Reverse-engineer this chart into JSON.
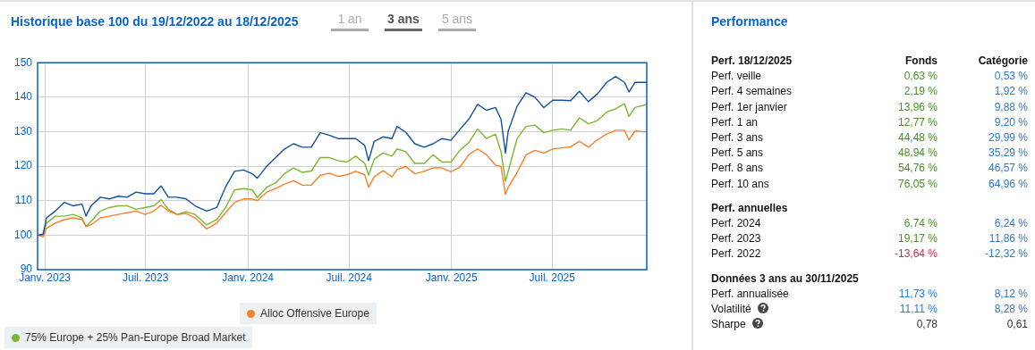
{
  "chart_data": [
    {
      "type": "line",
      "title": "Historique base 100 du 19/12/2022 au 18/12/2025",
      "annotations": [
        "1 an",
        "3 ans",
        "5 ans"
      ],
      "x": [
        "2022-12-19",
        "2022-12-29",
        "2023-01-04",
        "2023-01-20",
        "2023-02-05",
        "2023-02-21",
        "2023-03-09",
        "2023-03-16",
        "2023-03-25",
        "2023-04-11",
        "2023-04-27",
        "2023-05-13",
        "2023-05-29",
        "2023-06-14",
        "2023-06-30",
        "2023-07-16",
        "2023-07-29",
        "2023-08-11",
        "2023-08-27",
        "2023-09-12",
        "2023-09-28",
        "2023-10-19",
        "2023-11-06",
        "2023-11-22",
        "2023-12-08",
        "2023-12-24",
        "2024-01-09",
        "2024-01-18",
        "2024-02-04",
        "2024-02-20",
        "2024-03-07",
        "2024-03-23",
        "2024-04-08",
        "2024-04-24",
        "2024-05-10",
        "2024-05-26",
        "2024-06-11",
        "2024-06-27",
        "2024-07-13",
        "2024-07-29",
        "2024-08-05",
        "2024-08-15",
        "2024-08-31",
        "2024-09-16",
        "2024-09-25",
        "2024-10-11",
        "2024-10-27",
        "2024-11-13",
        "2024-11-29",
        "2024-12-15",
        "2024-12-31",
        "2025-01-16",
        "2025-02-01",
        "2025-02-17",
        "2025-03-05",
        "2025-03-21",
        "2025-03-31",
        "2025-04-08",
        "2025-04-13",
        "2025-04-29",
        "2025-05-15",
        "2025-05-31",
        "2025-06-16",
        "2025-07-02",
        "2025-07-18",
        "2025-08-03",
        "2025-08-19",
        "2025-09-04",
        "2025-09-20",
        "2025-10-07",
        "2025-10-23",
        "2025-11-08",
        "2025-11-16",
        "2025-11-27",
        "2025-12-18"
      ],
      "series": [
        {
          "color": "#12509e",
          "values": [
            100,
            100.3,
            105,
            107,
            109.5,
            108.5,
            109,
            105.5,
            108.5,
            111,
            110.5,
            111.3,
            111,
            112.5,
            112,
            112,
            114.3,
            111,
            111,
            110.5,
            108.5,
            107,
            108,
            114,
            118.5,
            118.9,
            117.8,
            116.5,
            120,
            122.5,
            125,
            126.5,
            125.5,
            125.5,
            129.7,
            129,
            128,
            128,
            128,
            126,
            121.6,
            127.2,
            128.5,
            128,
            131.5,
            129.8,
            126.5,
            125.5,
            126.5,
            128,
            127.5,
            130.6,
            133.6,
            137.9,
            136.2,
            137,
            133.6,
            123.8,
            130.2,
            137.4,
            141.3,
            140,
            137,
            139.1,
            139.1,
            139,
            141.7,
            138.7,
            140.9,
            144.3,
            146,
            144.3,
            141.5,
            144.3,
            144.3
          ]
        },
        {
          "name": "Alloc Offensive Europe",
          "color": "#f5822a",
          "values": [
            100,
            99.5,
            102,
            103.5,
            104.5,
            105,
            104.5,
            102.5,
            103,
            105,
            105.5,
            106,
            106.5,
            107,
            106,
            107,
            108.7,
            107,
            106,
            106.3,
            105,
            101.8,
            103.5,
            106.5,
            109.5,
            110.5,
            110.5,
            110,
            112.5,
            113.5,
            114.8,
            115.8,
            114.5,
            114.5,
            117.3,
            118,
            117,
            117.5,
            118.5,
            117.5,
            113.9,
            116.9,
            118.7,
            116.9,
            119,
            119.9,
            117.8,
            118.5,
            119.5,
            119.5,
            118.4,
            119.7,
            123.3,
            125,
            123.3,
            120.3,
            119.9,
            111.8,
            113.9,
            118.2,
            123.3,
            124.6,
            123.8,
            125,
            125.3,
            125.6,
            127.2,
            125.5,
            127.6,
            129.3,
            130.4,
            130.4,
            127.6,
            130.2,
            129.9
          ]
        },
        {
          "name": "75% Europe + 25% Pan-Europe Broad Market",
          "color": "#7ab730",
          "values": [
            100,
            100,
            103.5,
            105.5,
            105.5,
            106,
            105,
            102.5,
            104,
            107,
            108,
            108.5,
            108.5,
            107.5,
            108,
            108.5,
            110.3,
            107.5,
            106,
            106.8,
            106,
            103,
            104.5,
            108,
            113.1,
            113.5,
            113.1,
            110.9,
            113.9,
            115.2,
            117.8,
            119.5,
            118.2,
            118.6,
            122.5,
            122.5,
            121.6,
            121.2,
            122.9,
            120.8,
            117.4,
            122,
            123.8,
            122.9,
            125,
            124.2,
            120.8,
            120.8,
            123.3,
            121.2,
            121.2,
            124.6,
            126.8,
            130.8,
            128,
            129.3,
            124.2,
            115.6,
            118.6,
            128,
            131.5,
            131.9,
            129.7,
            130.4,
            130.8,
            130.4,
            134,
            132.3,
            133.2,
            135.7,
            136.6,
            138.1,
            134.4,
            137,
            137.9
          ]
        }
      ],
      "xlim": [
        "2022-12-19",
        "2025-12-18"
      ],
      "xticks": [
        {
          "value": "2023-01-01",
          "label": "Janv. 2023"
        },
        {
          "value": "2023-07-01",
          "label": "Juil. 2023"
        },
        {
          "value": "2024-01-01",
          "label": "Janv. 2024"
        },
        {
          "value": "2024-07-01",
          "label": "Juil. 2024"
        },
        {
          "value": "2025-01-01",
          "label": "Janv. 2025"
        },
        {
          "value": "2025-07-01",
          "label": "Juil. 2025"
        }
      ],
      "ylim": [
        90,
        150
      ],
      "yticks": [
        90,
        100,
        110,
        120,
        130,
        140,
        150
      ],
      "grid": true,
      "legend": "bottom",
      "marker": "none"
    },
    {
      "type": "other",
      "title": "Performance",
      "categories": [
        "Perf. 18/12/2025",
        "Perf. veille",
        "Perf. 4 semaines",
        "Perf. 1er janvier",
        "Perf. 1 an",
        "Perf. 3 ans",
        "Perf. 5 ans",
        "Perf. 8 ans",
        "Perf. 10 ans",
        "Perf. annuelles",
        "Perf. 2024",
        "Perf. 2023",
        "Perf. 2022",
        "Données 3 ans au 30/11/2025",
        "Perf. annualisée",
        "Volatilité",
        "Sharpe"
      ],
      "series": [
        {
          "name": "Fonds",
          "values": [
            null,
            0.63,
            2.19,
            13.96,
            12.77,
            44.48,
            48.94,
            54.76,
            76.05,
            null,
            6.74,
            19.17,
            -13.64,
            null,
            11.73,
            11.11,
            0.78
          ],
          "value_labels": [
            null,
            "0,63 %",
            "2,19 %",
            "13,96 %",
            "12,77 %",
            "44,48 %",
            "48,94 %",
            "54,76 %",
            "76,05 %",
            null,
            "6,74 %",
            "19,17 %",
            "-13,64 %",
            null,
            "11,73 %",
            "11,11 %",
            "0,78"
          ],
          "colors": [
            null,
            "#4c8c2b",
            "#4c8c2b",
            "#4c8c2b",
            "#4c8c2b",
            "#4c8c2b",
            "#4c8c2b",
            "#4c8c2b",
            "#4c8c2b",
            null,
            "#4c8c2b",
            "#4c8c2b",
            "#b8334a",
            null,
            "#2a7ad6",
            "#2a7ad6",
            "#333333"
          ]
        },
        {
          "name": "Catégorie",
          "values": [
            null,
            0.53,
            1.92,
            9.88,
            9.2,
            29.99,
            35.29,
            46.57,
            64.96,
            null,
            6.24,
            11.86,
            -12.32,
            null,
            8.12,
            8.28,
            0.61
          ],
          "value_labels": [
            null,
            "0,53 %",
            "1,92 %",
            "9,88 %",
            "9,20 %",
            "29,99 %",
            "35,29 %",
            "46,57 %",
            "64,96 %",
            null,
            "6,24 %",
            "11,86 %",
            "-12,32 %",
            null,
            "8,12 %",
            "8,28 %",
            "0,61"
          ],
          "colors": [
            null,
            "#2a7ad6",
            "#2a7ad6",
            "#2a7ad6",
            "#2a7ad6",
            "#2a7ad6",
            "#2a7ad6",
            "#2a7ad6",
            "#2a7ad6",
            null,
            "#2a7ad6",
            "#2a7ad6",
            "#2a7ad6",
            null,
            "#2a7ad6",
            "#2a7ad6",
            "#333333"
          ]
        }
      ]
    }
  ]
}
